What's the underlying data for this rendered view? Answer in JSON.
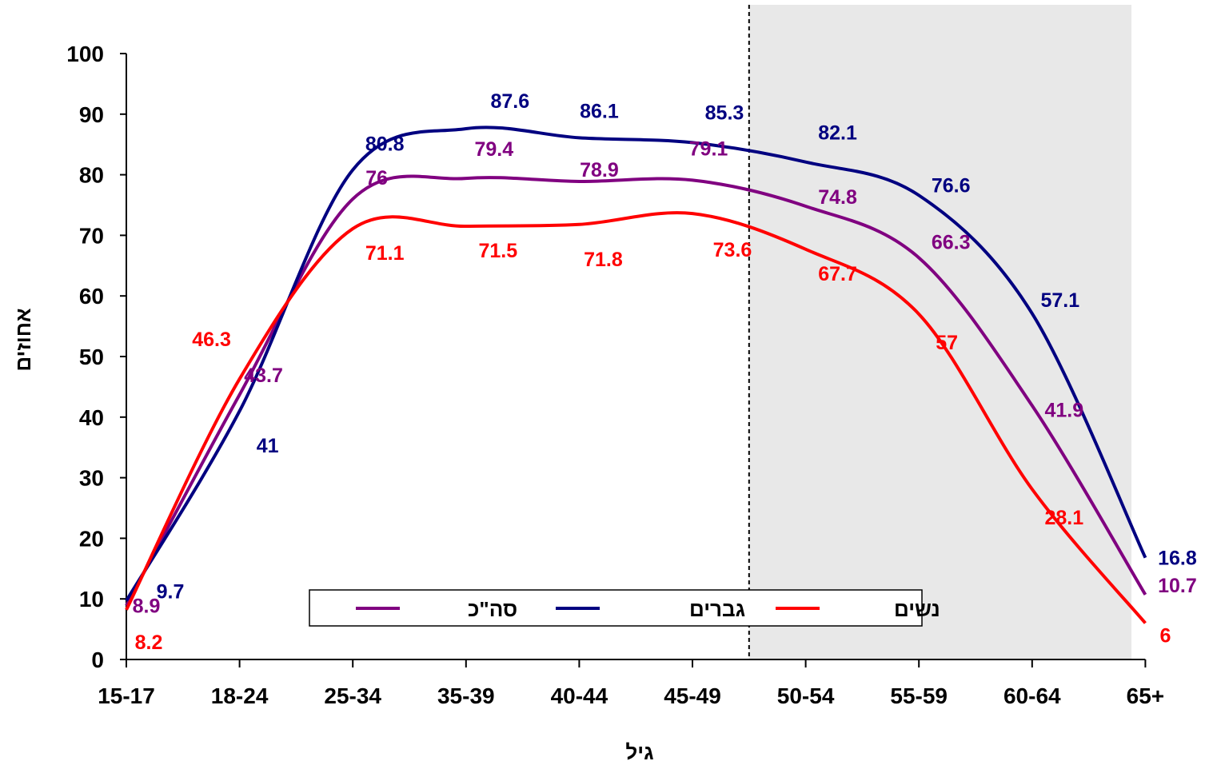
{
  "chart_data": {
    "type": "line",
    "categories": [
      "15-17",
      "18-24",
      "25-34",
      "35-39",
      "40-44",
      "45-49",
      "50-54",
      "55-59",
      "60-64",
      "65+"
    ],
    "xlabel": "גיל",
    "ylabel": "אחוזים",
    "ylim": [
      0,
      100
    ],
    "yticks": [
      0,
      10,
      20,
      30,
      40,
      50,
      60,
      70,
      80,
      90,
      100
    ],
    "grid": false,
    "shaded_region": {
      "from_category_index": 5.5,
      "to_category_index": 9,
      "color": "#e8e8e8"
    },
    "legend_position": "bottom-center",
    "series": [
      {
        "name": "סה\"כ",
        "color": "#800080",
        "values": [
          8.9,
          43.7,
          76,
          79.4,
          78.9,
          79.1,
          74.8,
          66.3,
          41.9,
          10.7
        ]
      },
      {
        "name": "גברים",
        "color": "#000080",
        "values": [
          9.7,
          41,
          80.8,
          87.6,
          86.1,
          85.3,
          82.1,
          76.6,
          57.1,
          16.8
        ]
      },
      {
        "name": "נשים",
        "color": "#ff0000",
        "values": [
          8.2,
          46.3,
          71.1,
          71.5,
          71.8,
          73.6,
          67.7,
          57,
          28.1,
          6
        ]
      }
    ],
    "legend_order": [
      "נשים",
      "גברים",
      "סה\"כ"
    ]
  }
}
